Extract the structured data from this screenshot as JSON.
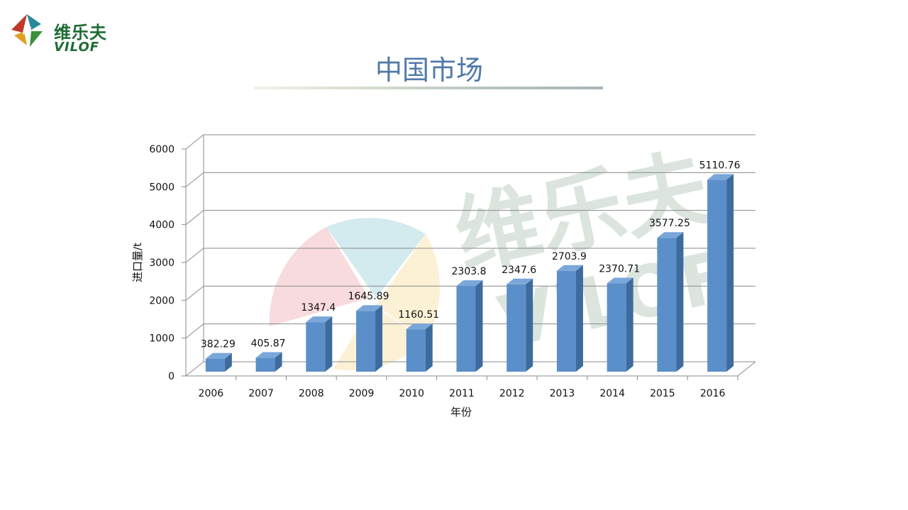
{
  "brand": {
    "name_cn": "维乐夫",
    "name_en": "VILOF"
  },
  "page": {
    "title": "中国市场"
  },
  "watermark": {
    "text_cn": "维乐夫",
    "text_en": "VILOF"
  },
  "colors": {
    "bar_front": "#5b8fc9",
    "bar_side": "#3e6b9e",
    "bar_top": "#7aa7d9",
    "title": "#5179a8",
    "brand_green": "#1f6b34"
  },
  "chart_data": {
    "type": "bar",
    "categories": [
      "2006",
      "2007",
      "2008",
      "2009",
      "2010",
      "2011",
      "2012",
      "2013",
      "2014",
      "2015",
      "2016"
    ],
    "values": [
      382.29,
      405.87,
      1347.4,
      1645.89,
      1160.51,
      2303.8,
      2347.6,
      2703.9,
      2370.71,
      3577.25,
      5110.76
    ],
    "value_labels": [
      "382.29",
      "405.87",
      "1347.4",
      "1645.89",
      "1160.51",
      "2303.8",
      "2347.6",
      "2703.9",
      "2370.71",
      "3577.25",
      "5110.76"
    ],
    "title": "",
    "xlabel": "年份",
    "ylabel": "进口量/t",
    "ylim": [
      0,
      6000
    ],
    "yticks": [
      0,
      1000,
      2000,
      3000,
      4000,
      5000,
      6000
    ],
    "style": "3d-bar",
    "grid": true,
    "legend": "none"
  }
}
